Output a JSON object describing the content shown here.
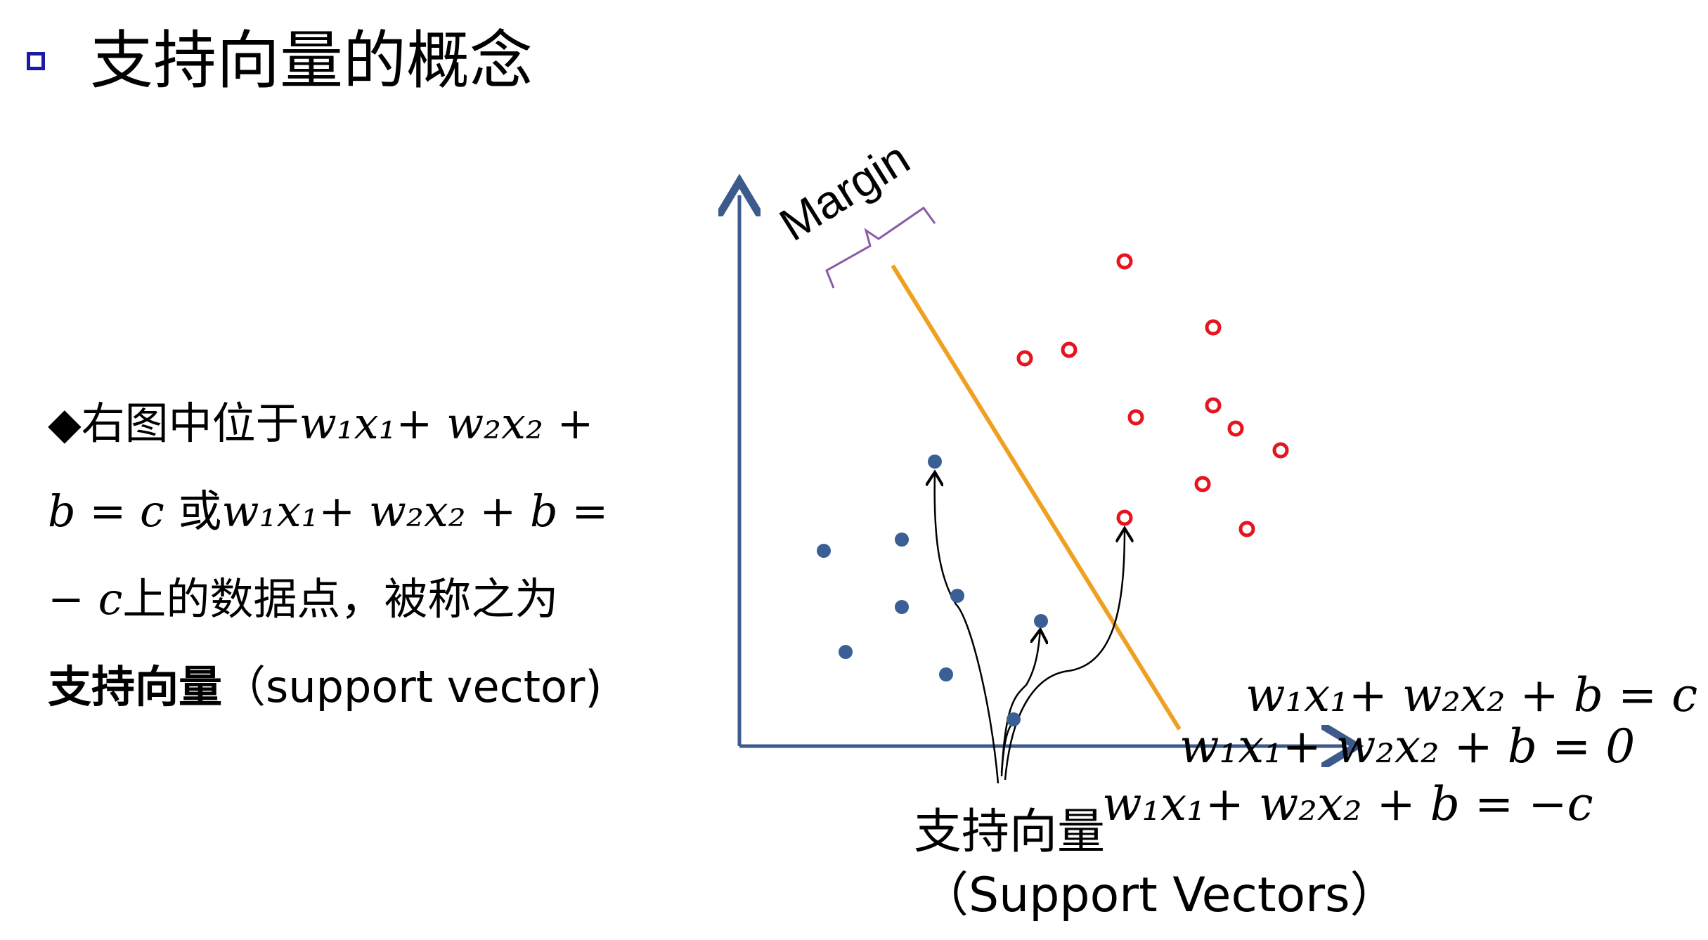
{
  "title": "支持向量的概念",
  "body": {
    "prefix": "◆右图中位于",
    "eq_a": "w₁x₁+ w₂x₂ +",
    "eq_b": "b = c",
    "connector": "或",
    "eq_c": "w₁x₁+ w₂x₂ + b =",
    "eq_d": "− c",
    "suffix": "上的数据点，被称之为",
    "bold_term": "支持向量",
    "english": "（support vector)"
  },
  "diagram": {
    "margin_label": "Margin",
    "eq_upper": "w₁x₁+ w₂x₂ + b = c",
    "eq_middle": "w₁x₁+ w₂x₂ + b = 0",
    "eq_lower": "w₁x₁+ w₂x₂ + b = −c",
    "caption_zh": "支持向量",
    "caption_en": "（Support Vectors）"
  },
  "colors": {
    "axis": "#3c5a8c",
    "hyperplane": "#f0a020",
    "blue_point": "#3a5f94",
    "red_point": "#e6141e",
    "brace": "#8a5aa8",
    "bullet_box": "#1a1aa6"
  },
  "points": {
    "blue": [
      [
        1330,
        657
      ],
      [
        1172,
        784
      ],
      [
        1283,
        768
      ],
      [
        1283,
        864
      ],
      [
        1362,
        848
      ],
      [
        1203,
        928
      ],
      [
        1346,
        960
      ],
      [
        1481,
        884
      ],
      [
        1442,
        1024
      ]
    ],
    "red": [
      [
        1600,
        372
      ],
      [
        1726,
        466
      ],
      [
        1458,
        510
      ],
      [
        1521,
        498
      ],
      [
        1616,
        594
      ],
      [
        1726,
        577
      ],
      [
        1758,
        610
      ],
      [
        1822,
        641
      ],
      [
        1711,
        689
      ],
      [
        1600,
        737
      ],
      [
        1774,
        753
      ]
    ]
  }
}
